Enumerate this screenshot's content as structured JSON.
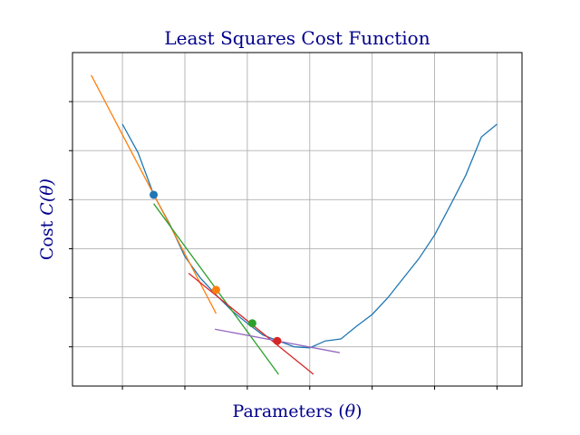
{
  "chart_data": {
    "type": "line",
    "title": "Least Squares Cost Function",
    "xlabel_prefix": "Parameters (",
    "xlabel_symbol": "θ",
    "xlabel_suffix": ")",
    "ylabel_prefix": "Cost ",
    "ylabel_symbol": "C(θ)",
    "ylabel_suffix": "",
    "xlim": [
      -0.4,
      3.2
    ],
    "ylim": [
      -0.4,
      3.0
    ],
    "xticks": [
      0,
      0.5,
      1,
      1.5,
      2,
      2.5,
      3
    ],
    "yticks": [
      0,
      0.5,
      1,
      1.5,
      2,
      2.5
    ],
    "show_tick_labels": false,
    "grid": true,
    "curve": {
      "x": [
        0,
        0.125,
        0.25,
        0.375,
        0.5,
        0.625,
        0.75,
        0.875,
        1,
        1.125,
        1.25,
        1.375,
        1.5,
        1.625,
        1.75,
        1.875,
        2,
        2.125,
        2.25,
        2.375,
        2.5,
        2.625,
        2.75,
        2.875,
        3
      ],
      "y": [
        2.27,
        1.98,
        1.55,
        1.26,
        0.92,
        0.7,
        0.53,
        0.37,
        0.24,
        0.12,
        0.06,
        0.0,
        -0.01,
        0.06,
        0.08,
        0.21,
        0.33,
        0.5,
        0.7,
        0.9,
        1.14,
        1.44,
        1.75,
        2.14,
        2.27
      ],
      "color": "#1f77b4"
    },
    "points": [
      {
        "x": 0.25,
        "y": 1.55,
        "color": "#1f77b4"
      },
      {
        "x": 0.75,
        "y": 0.58,
        "color": "#ff7f0e"
      },
      {
        "x": 1.04,
        "y": 0.24,
        "color": "#2ca02c"
      },
      {
        "x": 1.24,
        "y": 0.06,
        "color": "#d62728"
      }
    ],
    "tangents": [
      {
        "x": [
          -0.25,
          0.75
        ],
        "y": [
          2.77,
          0.34
        ],
        "color": "#ff7f0e"
      },
      {
        "x": [
          0.25,
          1.25
        ],
        "y": [
          1.46,
          -0.28
        ],
        "color": "#2ca02c"
      },
      {
        "x": [
          0.53,
          1.53
        ],
        "y": [
          0.75,
          -0.28
        ],
        "color": "#d62728"
      },
      {
        "x": [
          0.74,
          1.74
        ],
        "y": [
          0.18,
          -0.06
        ],
        "color": "#9467bd"
      }
    ],
    "text_color": "#00008b"
  }
}
